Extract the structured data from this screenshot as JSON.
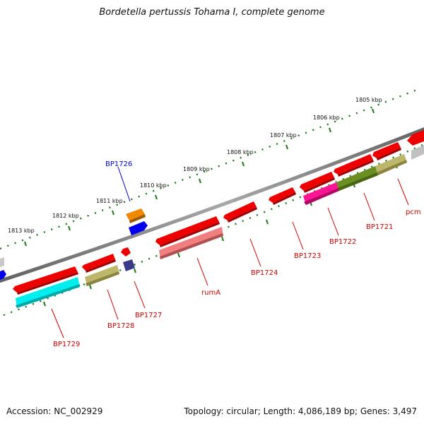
{
  "title": "Bordetella pertussis Tohama I, complete genome",
  "accession": "Accession: NC_002929",
  "summary": "Topology: circular; Length: 4,086,189 bp; Genes: 3,497",
  "kbp_ticks": [
    "1813 kbp",
    "1812 kbp",
    "1811 kbp",
    "1810 kbp",
    "1809 kbp",
    "1808 kbp",
    "1807 kbp",
    "1806 kbp",
    "1805 kbp"
  ],
  "colors": {
    "backbone": "#7a7a7a",
    "tick": "#1a7a1a",
    "label_red": "#cc0000",
    "label_blue": "#0000cc"
  },
  "gene_labels": [
    {
      "text": "BP1726",
      "color": "#0000cc"
    },
    {
      "text": "BP1729",
      "color": "#cc0000"
    },
    {
      "text": "BP1728",
      "color": "#cc0000"
    },
    {
      "text": "BP1727",
      "color": "#cc0000"
    },
    {
      "text": "rumA",
      "color": "#cc0000"
    },
    {
      "text": "BP1724",
      "color": "#cc0000"
    },
    {
      "text": "BP1723",
      "color": "#cc0000"
    },
    {
      "text": "BP1722",
      "color": "#cc0000"
    },
    {
      "text": "BP1721",
      "color": "#cc0000"
    },
    {
      "text": "pcm",
      "color": "#cc0000"
    }
  ]
}
